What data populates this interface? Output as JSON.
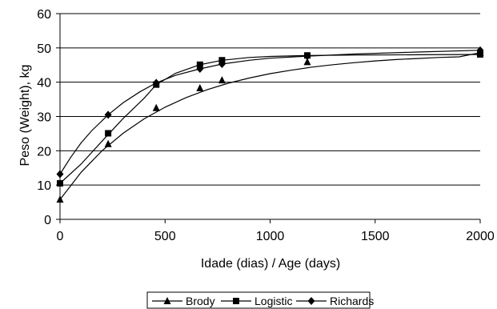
{
  "chart_data": {
    "type": "line",
    "xlabel": "Idade (dias) / Age (days)",
    "ylabel": "Peso (Weight), kg",
    "xlim": [
      0,
      2000
    ],
    "ylim": [
      0,
      60
    ],
    "xticks": [
      0,
      500,
      1000,
      1500,
      2000
    ],
    "yticks": [
      0,
      10,
      20,
      30,
      40,
      50,
      60
    ],
    "grid": "horizontal",
    "legend_position": "bottom",
    "series": [
      {
        "name": "Brody",
        "marker": "triangle",
        "points": [
          [
            0,
            5.8
          ],
          [
            229,
            22
          ],
          [
            458,
            32.5
          ],
          [
            666,
            38.3
          ],
          [
            771,
            40.6
          ],
          [
            1177,
            45.9
          ],
          [
            2000,
            48.6
          ]
        ],
        "curve": [
          [
            0,
            5.8
          ],
          [
            100,
            13.7
          ],
          [
            200,
            20.0
          ],
          [
            300,
            25.1
          ],
          [
            400,
            29.3
          ],
          [
            500,
            32.7
          ],
          [
            600,
            35.5
          ],
          [
            700,
            37.8
          ],
          [
            800,
            39.7
          ],
          [
            900,
            41.2
          ],
          [
            1000,
            42.5
          ],
          [
            1100,
            43.5
          ],
          [
            1200,
            44.4
          ],
          [
            1300,
            45.1
          ],
          [
            1400,
            45.7
          ],
          [
            1500,
            46.2
          ],
          [
            1600,
            46.6
          ],
          [
            1700,
            46.9
          ],
          [
            1800,
            47.2
          ],
          [
            1900,
            47.4
          ],
          [
            2000,
            48.6
          ]
        ]
      },
      {
        "name": "Logistic",
        "marker": "square",
        "points": [
          [
            0,
            10.5
          ],
          [
            229,
            25.1
          ],
          [
            458,
            39.3
          ],
          [
            666,
            45.1
          ],
          [
            771,
            46.4
          ],
          [
            1177,
            47.8
          ],
          [
            2000,
            48.1
          ]
        ],
        "curve": [
          [
            0,
            10.5
          ],
          [
            100,
            16.1
          ],
          [
            200,
            22.8
          ],
          [
            300,
            29.4
          ],
          [
            400,
            35.3
          ],
          [
            458,
            39.3
          ],
          [
            550,
            42.6
          ],
          [
            666,
            45.1
          ],
          [
            771,
            46.4
          ],
          [
            900,
            47.2
          ],
          [
            1000,
            47.5
          ],
          [
            1177,
            47.8
          ],
          [
            1400,
            47.9
          ],
          [
            1700,
            48.0
          ],
          [
            2000,
            48.1
          ]
        ]
      },
      {
        "name": "Richards",
        "marker": "diamond",
        "points": [
          [
            0,
            13.2
          ],
          [
            229,
            30.5
          ],
          [
            458,
            39.8
          ],
          [
            666,
            43.9
          ],
          [
            771,
            45.3
          ],
          [
            1177,
            47.6
          ],
          [
            2000,
            49.3
          ]
        ],
        "curve": [
          [
            0,
            13.2
          ],
          [
            50,
            18.0
          ],
          [
            100,
            22.3
          ],
          [
            150,
            25.8
          ],
          [
            229,
            30.5
          ],
          [
            300,
            34.0
          ],
          [
            380,
            37.2
          ],
          [
            458,
            39.8
          ],
          [
            550,
            42.0
          ],
          [
            666,
            43.9
          ],
          [
            771,
            45.3
          ],
          [
            900,
            46.4
          ],
          [
            1000,
            47.0
          ],
          [
            1177,
            47.6
          ],
          [
            1400,
            48.2
          ],
          [
            1700,
            48.8
          ],
          [
            2000,
            49.3
          ]
        ]
      }
    ]
  }
}
